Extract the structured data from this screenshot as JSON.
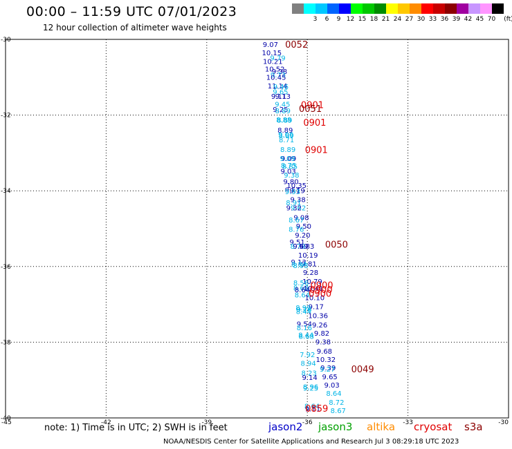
{
  "header": {
    "title": "00:00 – 11:59 UTC 07/01/2023",
    "subtitle": "12 hour collection of altimeter wave heights"
  },
  "legend": {
    "unit": "(ft)",
    "swatches": [
      {
        "color": "#808080",
        "label": ""
      },
      {
        "color": "#00ffff",
        "label": "3"
      },
      {
        "color": "#00c8ff",
        "label": "6"
      },
      {
        "color": "#0064ff",
        "label": "9"
      },
      {
        "color": "#0000ff",
        "label": "12"
      },
      {
        "color": "#00ff00",
        "label": "15"
      },
      {
        "color": "#00c800",
        "label": "18"
      },
      {
        "color": "#008c00",
        "label": "21"
      },
      {
        "color": "#ffff00",
        "label": "24"
      },
      {
        "color": "#ffc800",
        "label": "27"
      },
      {
        "color": "#ff8c00",
        "label": "30"
      },
      {
        "color": "#ff0000",
        "label": "33"
      },
      {
        "color": "#c80000",
        "label": "36"
      },
      {
        "color": "#8c0000",
        "label": "39"
      },
      {
        "color": "#a000a0",
        "label": "42"
      },
      {
        "color": "#c896ff",
        "label": "45"
      },
      {
        "color": "#ff96ff",
        "label": "70"
      },
      {
        "color": "#000000",
        "label": ""
      }
    ]
  },
  "axes": {
    "x_ticks": [
      "-45",
      "-42",
      "-39",
      "-36",
      "-33",
      "-30"
    ],
    "y_ticks": [
      "-30",
      "-32",
      "-34",
      "-36",
      "-38",
      "-40"
    ],
    "xlim": [
      -45,
      -30
    ],
    "ylim": [
      -40,
      -30
    ]
  },
  "colors": {
    "jason2": "#0000c8",
    "jason3": "#00a000",
    "altika": "#ff8c00",
    "cryosat": "#e00000",
    "s3a": "#8c0000",
    "swh_dark": "#0000a8",
    "swh_light": "#00b4e6",
    "time_red": "#e00000",
    "time_darkred": "#8c0000"
  },
  "observations": [
    {
      "lon": -37.1,
      "lat": -30.2,
      "text": "9.07",
      "color": "dark"
    },
    {
      "lon": -37.06,
      "lat": -30.42,
      "text": "10.15",
      "color": "dark"
    },
    {
      "lon": -36.88,
      "lat": -30.56,
      "text": "9.79",
      "color": "light"
    },
    {
      "lon": -37.03,
      "lat": -30.65,
      "text": "10.21",
      "color": "dark"
    },
    {
      "lon": -36.97,
      "lat": -30.85,
      "text": "10.52",
      "color": "dark"
    },
    {
      "lon": -36.83,
      "lat": -30.91,
      "text": "9.38",
      "color": "dark"
    },
    {
      "lon": -36.87,
      "lat": -31.0,
      "text": "9.73",
      "color": "light"
    },
    {
      "lon": -36.93,
      "lat": -31.07,
      "text": "10.45",
      "color": "dark"
    },
    {
      "lon": -36.89,
      "lat": -31.3,
      "text": "11.14",
      "color": "dark"
    },
    {
      "lon": -36.79,
      "lat": -31.31,
      "text": "9.46",
      "color": "light"
    },
    {
      "lon": -36.8,
      "lat": -31.45,
      "text": "9.65",
      "color": "light"
    },
    {
      "lon": -36.85,
      "lat": -31.57,
      "text": "9.11",
      "color": "dark"
    },
    {
      "lon": -36.73,
      "lat": -31.57,
      "text": "9.13",
      "color": "dark"
    },
    {
      "lon": -36.74,
      "lat": -31.78,
      "text": "9.45",
      "color": "light"
    },
    {
      "lon": -36.8,
      "lat": -31.92,
      "text": "9.25",
      "color": "dark"
    },
    {
      "lon": -36.73,
      "lat": -31.95,
      "text": "8.89",
      "color": "light"
    },
    {
      "lon": -36.7,
      "lat": -32.19,
      "text": "8.88",
      "color": "light"
    },
    {
      "lon": -36.68,
      "lat": -32.2,
      "text": "8.89",
      "color": "light"
    },
    {
      "lon": -36.66,
      "lat": -32.46,
      "text": "8.89",
      "color": "dark"
    },
    {
      "lon": -36.64,
      "lat": -32.58,
      "text": "9.06",
      "color": "light"
    },
    {
      "lon": -36.63,
      "lat": -32.6,
      "text": "8.89",
      "color": "light"
    },
    {
      "lon": -36.62,
      "lat": -32.72,
      "text": "8.71",
      "color": "light"
    },
    {
      "lon": -36.58,
      "lat": -32.97,
      "text": "8.89",
      "color": "light"
    },
    {
      "lon": -36.56,
      "lat": -33.21,
      "text": "9.09",
      "color": "dark"
    },
    {
      "lon": -36.59,
      "lat": -33.21,
      "text": "9.09",
      "color": "light"
    },
    {
      "lon": -36.56,
      "lat": -33.39,
      "text": "8.75",
      "color": "light"
    },
    {
      "lon": -36.52,
      "lat": -33.42,
      "text": "8.85",
      "color": "light"
    },
    {
      "lon": -36.57,
      "lat": -33.55,
      "text": "9.03",
      "color": "dark"
    },
    {
      "lon": -36.47,
      "lat": -33.65,
      "text": "9.38",
      "color": "light"
    },
    {
      "lon": -36.49,
      "lat": -33.82,
      "text": "9.80",
      "color": "dark"
    },
    {
      "lon": -36.32,
      "lat": -33.92,
      "text": "10.35",
      "color": "dark"
    },
    {
      "lon": -36.44,
      "lat": -34.04,
      "text": "9.57",
      "color": "dark"
    },
    {
      "lon": -36.3,
      "lat": -34.06,
      "text": "9.19",
      "color": "dark"
    },
    {
      "lon": -36.44,
      "lat": -34.09,
      "text": "9.93",
      "color": "light"
    },
    {
      "lon": -36.28,
      "lat": -34.3,
      "text": "9.38",
      "color": "dark"
    },
    {
      "lon": -36.41,
      "lat": -34.38,
      "text": "8.91",
      "color": "light"
    },
    {
      "lon": -36.27,
      "lat": -34.52,
      "text": "9.62",
      "color": "light"
    },
    {
      "lon": -36.4,
      "lat": -34.52,
      "text": "9.32",
      "color": "dark"
    },
    {
      "lon": -36.18,
      "lat": -34.77,
      "text": "9.08",
      "color": "dark"
    },
    {
      "lon": -36.33,
      "lat": -34.84,
      "text": "8.67",
      "color": "light"
    },
    {
      "lon": -36.11,
      "lat": -35.0,
      "text": "9.50",
      "color": "dark"
    },
    {
      "lon": -36.33,
      "lat": -35.08,
      "text": "8.76",
      "color": "light"
    },
    {
      "lon": -36.14,
      "lat": -35.24,
      "text": "9.20",
      "color": "dark"
    },
    {
      "lon": -36.3,
      "lat": -35.42,
      "text": "9.51",
      "color": "dark"
    },
    {
      "lon": -36.28,
      "lat": -35.53,
      "text": "8.78",
      "color": "light"
    },
    {
      "lon": -36.02,
      "lat": -35.53,
      "text": "9.83",
      "color": "dark"
    },
    {
      "lon": -36.2,
      "lat": -35.53,
      "text": "9.69",
      "color": "dark"
    },
    {
      "lon": -35.98,
      "lat": -35.77,
      "text": "10.19",
      "color": "dark"
    },
    {
      "lon": -36.26,
      "lat": -35.95,
      "text": "9.13",
      "color": "dark"
    },
    {
      "lon": -35.95,
      "lat": -35.99,
      "text": "9.81",
      "color": "dark"
    },
    {
      "lon": -36.25,
      "lat": -36.0,
      "text": "8.84",
      "color": "light"
    },
    {
      "lon": -36.2,
      "lat": -36.04,
      "text": "8.93",
      "color": "light"
    },
    {
      "lon": -35.9,
      "lat": -36.22,
      "text": "9.28",
      "color": "dark"
    },
    {
      "lon": -35.85,
      "lat": -36.46,
      "text": "10.79",
      "color": "dark"
    },
    {
      "lon": -36.19,
      "lat": -36.5,
      "text": "8.56",
      "color": "light"
    },
    {
      "lon": -36.19,
      "lat": -36.63,
      "text": "8.68",
      "color": "light"
    },
    {
      "lon": -35.82,
      "lat": -36.64,
      "text": "10.41",
      "color": "dark"
    },
    {
      "lon": -36.15,
      "lat": -36.68,
      "text": "8.64",
      "color": "dark"
    },
    {
      "lon": -36.15,
      "lat": -36.82,
      "text": "8.64",
      "color": "light"
    },
    {
      "lon": -35.78,
      "lat": -36.89,
      "text": "10.10",
      "color": "dark"
    },
    {
      "lon": -35.74,
      "lat": -37.13,
      "text": "9.17",
      "color": "dark"
    },
    {
      "lon": -36.12,
      "lat": -37.15,
      "text": "8.99",
      "color": "light"
    },
    {
      "lon": -36.1,
      "lat": -37.2,
      "text": "9.26",
      "color": "light"
    },
    {
      "lon": -36.11,
      "lat": -37.25,
      "text": "8.44",
      "color": "light"
    },
    {
      "lon": -35.68,
      "lat": -37.36,
      "text": "10.36",
      "color": "dark"
    },
    {
      "lon": -36.09,
      "lat": -37.58,
      "text": "9.54",
      "color": "dark"
    },
    {
      "lon": -35.63,
      "lat": -37.61,
      "text": "9.26",
      "color": "dark"
    },
    {
      "lon": -36.09,
      "lat": -37.68,
      "text": "8.16",
      "color": "light"
    },
    {
      "lon": -35.57,
      "lat": -37.83,
      "text": "9.82",
      "color": "dark"
    },
    {
      "lon": -36.04,
      "lat": -37.87,
      "text": "8.44",
      "color": "light"
    },
    {
      "lon": -36.03,
      "lat": -37.91,
      "text": "8.68",
      "color": "light"
    },
    {
      "lon": -35.53,
      "lat": -38.06,
      "text": "9.38",
      "color": "dark"
    },
    {
      "lon": -35.49,
      "lat": -38.3,
      "text": "9.68",
      "color": "dark"
    },
    {
      "lon": -36.0,
      "lat": -38.39,
      "text": "7.92",
      "color": "light"
    },
    {
      "lon": -35.45,
      "lat": -38.52,
      "text": "10.32",
      "color": "dark"
    },
    {
      "lon": -35.97,
      "lat": -38.62,
      "text": "8.94",
      "color": "light"
    },
    {
      "lon": -35.38,
      "lat": -38.74,
      "text": "9.39",
      "color": "dark"
    },
    {
      "lon": -35.4,
      "lat": -38.78,
      "text": "9.27",
      "color": "light"
    },
    {
      "lon": -35.95,
      "lat": -38.88,
      "text": "8.23",
      "color": "light"
    },
    {
      "lon": -35.33,
      "lat": -38.98,
      "text": "9.65",
      "color": "dark"
    },
    {
      "lon": -35.93,
      "lat": -39.0,
      "text": "9.14",
      "color": "dark"
    },
    {
      "lon": -35.27,
      "lat": -39.2,
      "text": "9.03",
      "color": "dark"
    },
    {
      "lon": -35.9,
      "lat": -39.24,
      "text": "8.96",
      "color": "light"
    },
    {
      "lon": -35.9,
      "lat": -39.28,
      "text": "9.25",
      "color": "light"
    },
    {
      "lon": -35.21,
      "lat": -39.42,
      "text": "8.64",
      "color": "light"
    },
    {
      "lon": -35.13,
      "lat": -39.65,
      "text": "8.72",
      "color": "light"
    },
    {
      "lon": -35.86,
      "lat": -39.75,
      "text": "8.64",
      "color": "light"
    },
    {
      "lon": -35.84,
      "lat": -39.83,
      "text": "9.11",
      "color": "dark"
    },
    {
      "lon": -35.08,
      "lat": -39.87,
      "text": "8.67",
      "color": "light"
    }
  ],
  "time_labels": [
    {
      "lon": -36.32,
      "lat": -30.22,
      "text": "0052",
      "color": "darkred"
    },
    {
      "lon": -35.85,
      "lat": -31.82,
      "text": "0901",
      "color": "red"
    },
    {
      "lon": -35.91,
      "lat": -31.92,
      "text": "0051",
      "color": "darkred"
    },
    {
      "lon": -35.78,
      "lat": -32.28,
      "text": "0901",
      "color": "red"
    },
    {
      "lon": -35.73,
      "lat": -33.0,
      "text": "0901",
      "color": "red"
    },
    {
      "lon": -35.13,
      "lat": -35.5,
      "text": "0050",
      "color": "darkred"
    },
    {
      "lon": -35.57,
      "lat": -36.58,
      "text": "0900",
      "color": "red"
    },
    {
      "lon": -35.59,
      "lat": -36.7,
      "text": "0900",
      "color": "red"
    },
    {
      "lon": -35.62,
      "lat": -36.8,
      "text": "0900",
      "color": "red"
    },
    {
      "lon": -34.35,
      "lat": -38.8,
      "text": "0049",
      "color": "darkred"
    },
    {
      "lon": -35.72,
      "lat": -39.84,
      "text": "0859",
      "color": "red"
    }
  ],
  "footer": {
    "note": "note:  1) Time is in UTC;  2) SWH is in feet",
    "satellites": [
      {
        "name": "jason2",
        "key": "jason2"
      },
      {
        "name": "jason3",
        "key": "jason3"
      },
      {
        "name": "altika",
        "key": "altika"
      },
      {
        "name": "cryosat",
        "key": "cryosat"
      },
      {
        "name": "s3a",
        "key": "s3a"
      }
    ],
    "credit": "NOAA/NESDIS Center for Satellite Applications and Research    Jul  3 08:29:18 UTC 2023"
  }
}
